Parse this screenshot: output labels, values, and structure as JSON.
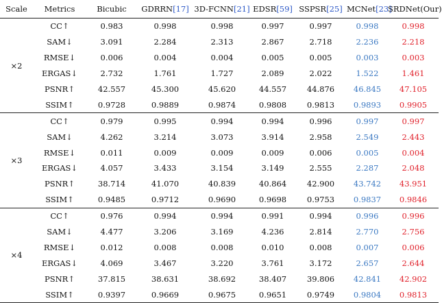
{
  "header": {
    "scale": "Scale",
    "metrics": "Metrics",
    "methods": [
      {
        "name": "Bicubic",
        "ref": ""
      },
      {
        "name": "GDRRN",
        "ref": "[17]"
      },
      {
        "name": "3D-FCNN",
        "ref": "[21]"
      },
      {
        "name": "EDSR",
        "ref": "[59]"
      },
      {
        "name": "SSPSR",
        "ref": "[25]"
      },
      {
        "name": "MCNet",
        "ref": "[23]"
      },
      {
        "name": "SRDNet(Our)",
        "ref": ""
      }
    ]
  },
  "groups": [
    {
      "scale": "×2",
      "rows": [
        {
          "metric": "CC↑",
          "values": [
            "0.983",
            "0.998",
            "0.998",
            "0.997",
            "0.997",
            "0.998",
            "0.998"
          ]
        },
        {
          "metric": "SAM↓",
          "values": [
            "3.091",
            "2.284",
            "2.313",
            "2.867",
            "2.718",
            "2.236",
            "2.218"
          ]
        },
        {
          "metric": "RMSE↓",
          "values": [
            "0.006",
            "0.004",
            "0.004",
            "0.005",
            "0.005",
            "0.003",
            "0.003"
          ]
        },
        {
          "metric": "ERGAS↓",
          "values": [
            "2.732",
            "1.761",
            "1.727",
            "2.089",
            "2.022",
            "1.522",
            "1.461"
          ]
        },
        {
          "metric": "PSNR↑",
          "values": [
            "42.557",
            "45.300",
            "45.620",
            "44.557",
            "44.876",
            "46.845",
            "47.105"
          ]
        },
        {
          "metric": "SSIM↑",
          "values": [
            "0.9728",
            "0.9889",
            "0.9874",
            "0.9808",
            "0.9813",
            "0.9893",
            "0.9905"
          ]
        }
      ]
    },
    {
      "scale": "×3",
      "rows": [
        {
          "metric": "CC↑",
          "values": [
            "0.979",
            "0.995",
            "0.994",
            "0.994",
            "0.996",
            "0.997",
            "0.997"
          ]
        },
        {
          "metric": "SAM↓",
          "values": [
            "4.262",
            "3.214",
            "3.073",
            "3.914",
            "2.958",
            "2.549",
            "2.443"
          ]
        },
        {
          "metric": "RMSE↓",
          "values": [
            "0.011",
            "0.009",
            "0.009",
            "0.009",
            "0.006",
            "0.005",
            "0.004"
          ]
        },
        {
          "metric": "ERGAS↓",
          "values": [
            "4.057",
            "3.433",
            "3.154",
            "3.149",
            "2.555",
            "2.287",
            "2.048"
          ]
        },
        {
          "metric": "PSNR↑",
          "values": [
            "38.714",
            "41.070",
            "40.839",
            "40.864",
            "42.900",
            "43.742",
            "43.951"
          ]
        },
        {
          "metric": "SSIM↑",
          "values": [
            "0.9485",
            "0.9712",
            "0.9690",
            "0.9698",
            "0.9753",
            "0.9837",
            "0.9846"
          ]
        }
      ]
    },
    {
      "scale": "×4",
      "rows": [
        {
          "metric": "CC↑",
          "values": [
            "0.976",
            "0.994",
            "0.994",
            "0.991",
            "0.994",
            "0.996",
            "0.996"
          ]
        },
        {
          "metric": "SAM↓",
          "values": [
            "4.477",
            "3.206",
            "3.169",
            "4.236",
            "2.814",
            "2.770",
            "2.756"
          ]
        },
        {
          "metric": "RMSE↓",
          "values": [
            "0.012",
            "0.008",
            "0.008",
            "0.010",
            "0.008",
            "0.007",
            "0.006"
          ]
        },
        {
          "metric": "ERGAS↓",
          "values": [
            "4.069",
            "3.467",
            "3.220",
            "3.761",
            "3.172",
            "2.657",
            "2.644"
          ]
        },
        {
          "metric": "PSNR↑",
          "values": [
            "37.815",
            "38.631",
            "38.692",
            "38.407",
            "39.806",
            "42.841",
            "42.902"
          ]
        },
        {
          "metric": "SSIM↑",
          "values": [
            "0.9397",
            "0.9669",
            "0.9675",
            "0.9651",
            "0.9749",
            "0.9804",
            "0.9813"
          ]
        }
      ]
    }
  ],
  "colors": {
    "reference": "#2a56c6",
    "second_best": "#3a78c2",
    "best": "#e0202a"
  }
}
